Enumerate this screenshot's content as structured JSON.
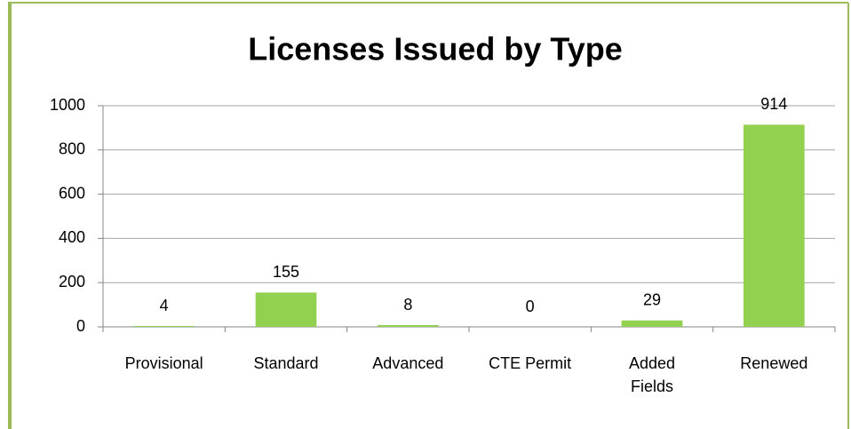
{
  "chart_data": {
    "type": "bar",
    "title": "Licenses Issued by Type",
    "categories": [
      "Provisional",
      "Standard",
      "Advanced",
      "CTE Permit",
      "Added Fields",
      "Renewed"
    ],
    "values": [
      4,
      155,
      8,
      0,
      29,
      914
    ],
    "color": "#92d050",
    "ylim": [
      0,
      1000
    ],
    "yticks": [
      0,
      200,
      400,
      600,
      800,
      1000
    ],
    "grid": true
  }
}
